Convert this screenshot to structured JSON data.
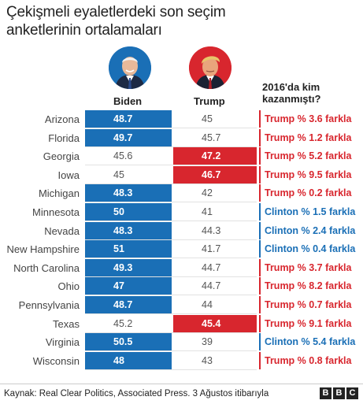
{
  "title": "Çekişmeli eyaletlerdeki son seçim anketlerinin ortalamaları",
  "headers": {
    "biden": "Biden",
    "trump": "Trump",
    "result2016": "2016'da kim kazanmıştı?"
  },
  "chart_data": {
    "type": "table",
    "columns": [
      "Biden",
      "Trump",
      "2016'da kim kazanmıştı?"
    ],
    "rows": [
      {
        "state": "Arizona",
        "biden": "48.7",
        "trump": "45",
        "leader": "biden",
        "result": "Trump % 3.6 farkla",
        "winner2016": "trump"
      },
      {
        "state": "Florida",
        "biden": "49.7",
        "trump": "45.7",
        "leader": "biden",
        "result": "Trump % 1.2 farkla",
        "winner2016": "trump"
      },
      {
        "state": "Georgia",
        "biden": "45.6",
        "trump": "47.2",
        "leader": "trump",
        "result": "Trump % 5.2 farkla",
        "winner2016": "trump"
      },
      {
        "state": "Iowa",
        "biden": "45",
        "trump": "46.7",
        "leader": "trump",
        "result": "Trump % 9.5 farkla",
        "winner2016": "trump"
      },
      {
        "state": "Michigan",
        "biden": "48.3",
        "trump": "42",
        "leader": "biden",
        "result": "Trump % 0.2 farkla",
        "winner2016": "trump"
      },
      {
        "state": "Minnesota",
        "biden": "50",
        "trump": "41",
        "leader": "biden",
        "result": "Clinton % 1.5 farkla",
        "winner2016": "clinton"
      },
      {
        "state": "Nevada",
        "biden": "48.3",
        "trump": "44.3",
        "leader": "biden",
        "result": "Clinton % 2.4 farkla",
        "winner2016": "clinton"
      },
      {
        "state": "New Hampshire",
        "biden": "51",
        "trump": "41.7",
        "leader": "biden",
        "result": "Clinton % 0.4 farkla",
        "winner2016": "clinton"
      },
      {
        "state": "North Carolina",
        "biden": "49.3",
        "trump": "44.7",
        "leader": "biden",
        "result": "Trump % 3.7 farkla",
        "winner2016": "trump"
      },
      {
        "state": "Ohio",
        "biden": "47",
        "trump": "44.7",
        "leader": "biden",
        "result": "Trump % 8.2 farkla",
        "winner2016": "trump"
      },
      {
        "state": "Pennsylvania",
        "biden": "48.7",
        "trump": "44",
        "leader": "biden",
        "result": "Trump % 0.7 farkla",
        "winner2016": "trump"
      },
      {
        "state": "Texas",
        "biden": "45.2",
        "trump": "45.4",
        "leader": "trump",
        "result": "Trump % 9.1 farkla",
        "winner2016": "trump"
      },
      {
        "state": "Virginia",
        "biden": "50.5",
        "trump": "39",
        "leader": "biden",
        "result": "Clinton % 5.4 farkla",
        "winner2016": "clinton"
      },
      {
        "state": "Wisconsin",
        "biden": "48",
        "trump": "43",
        "leader": "biden",
        "result": "Trump % 0.8 farkla",
        "winner2016": "trump"
      }
    ]
  },
  "colors": {
    "democrat": "#1a6fb6",
    "republican": "#d8262e"
  },
  "source": "Kaynak: Real Clear Politics, Associated Press. 3 Ağustos itibarıyla",
  "logo": [
    "B",
    "B",
    "C"
  ]
}
